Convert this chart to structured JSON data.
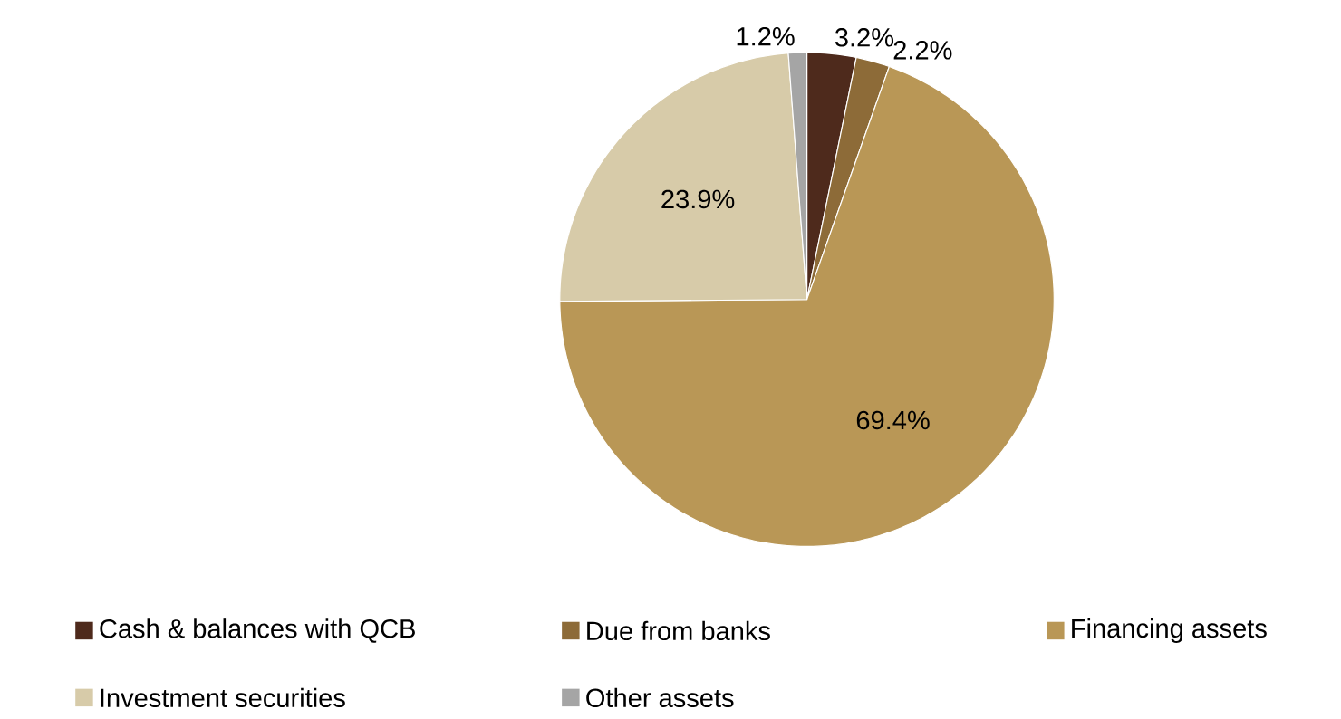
{
  "chart_data": {
    "type": "pie",
    "categories": [
      "Cash & balances with QCB",
      "Due from banks",
      "Financing assets",
      "Investment securities",
      "Other assets"
    ],
    "values": [
      3.2,
      2.2,
      69.4,
      23.9,
      1.2
    ],
    "colors": [
      "#4e2a1c",
      "#8d6b38",
      "#b99756",
      "#d7cba9",
      "#a5a5a5"
    ],
    "data_labels": true,
    "value_labels": [
      "3.2%",
      "2.2%",
      "69.4%",
      "23.9%",
      "1.2%"
    ],
    "legend": "bottom"
  }
}
